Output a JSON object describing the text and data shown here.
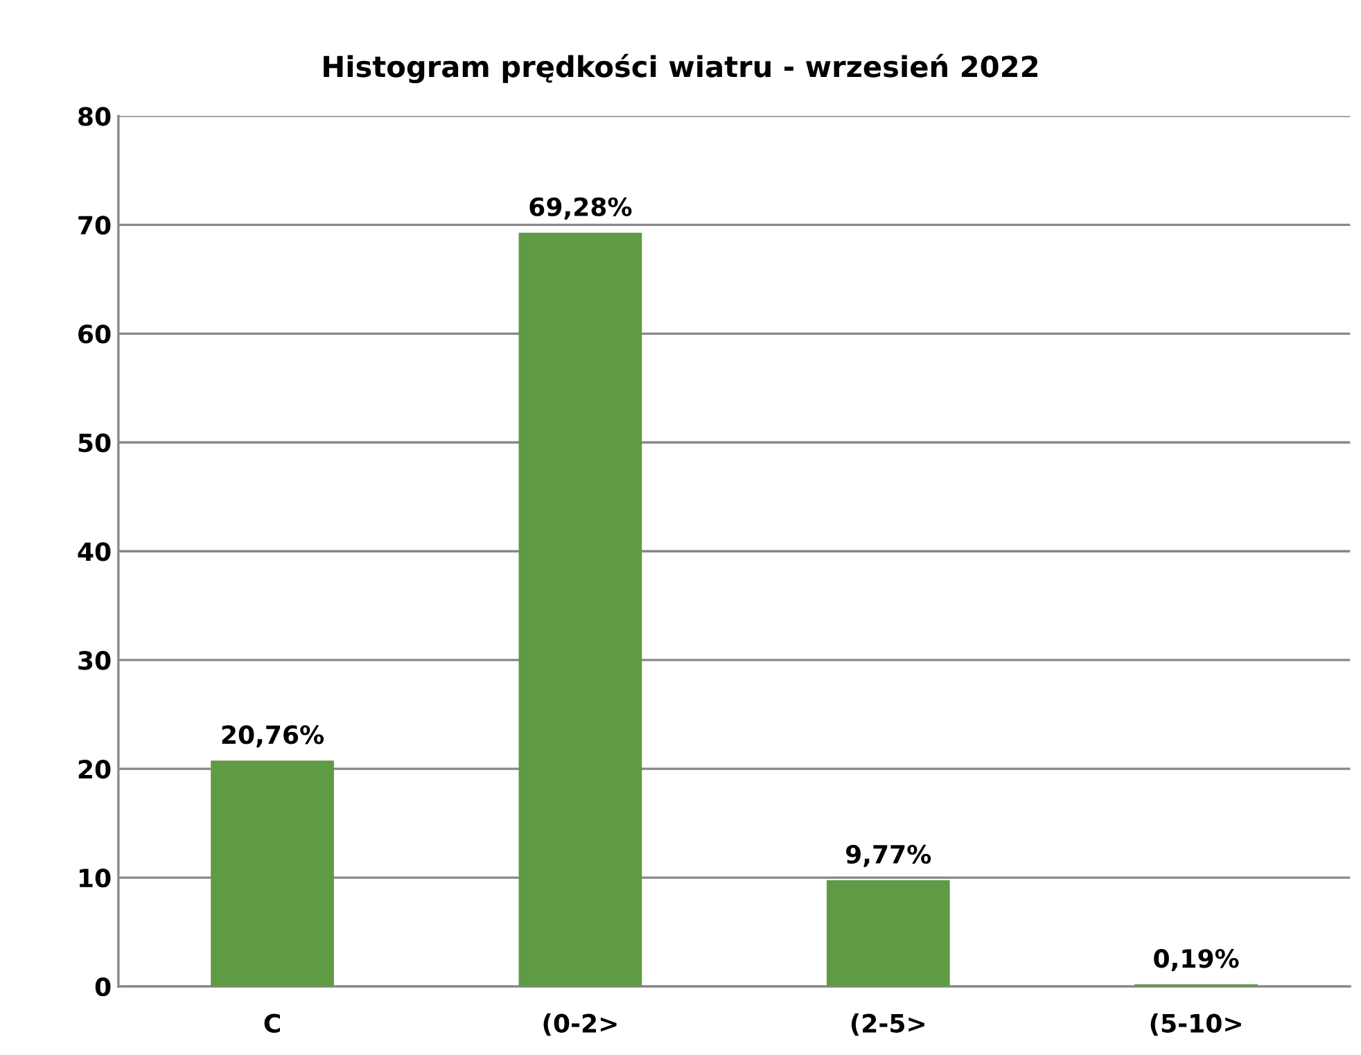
{
  "chart_data": {
    "type": "bar",
    "title": "Histogram prędkości wiatru - wrzesień 2022",
    "categories": [
      "C",
      "(0-2>",
      "(2-5>",
      "(5-10>"
    ],
    "values": [
      20.76,
      69.28,
      9.77,
      0.19
    ],
    "value_labels": [
      "20,76%",
      "69,28%",
      "9,77%",
      "0,19%"
    ],
    "color": "#5f9a45",
    "ylim": [
      0,
      80
    ],
    "yticks": [
      0,
      10,
      20,
      30,
      40,
      50,
      60,
      70,
      80
    ],
    "grid": "y",
    "legend": false
  }
}
